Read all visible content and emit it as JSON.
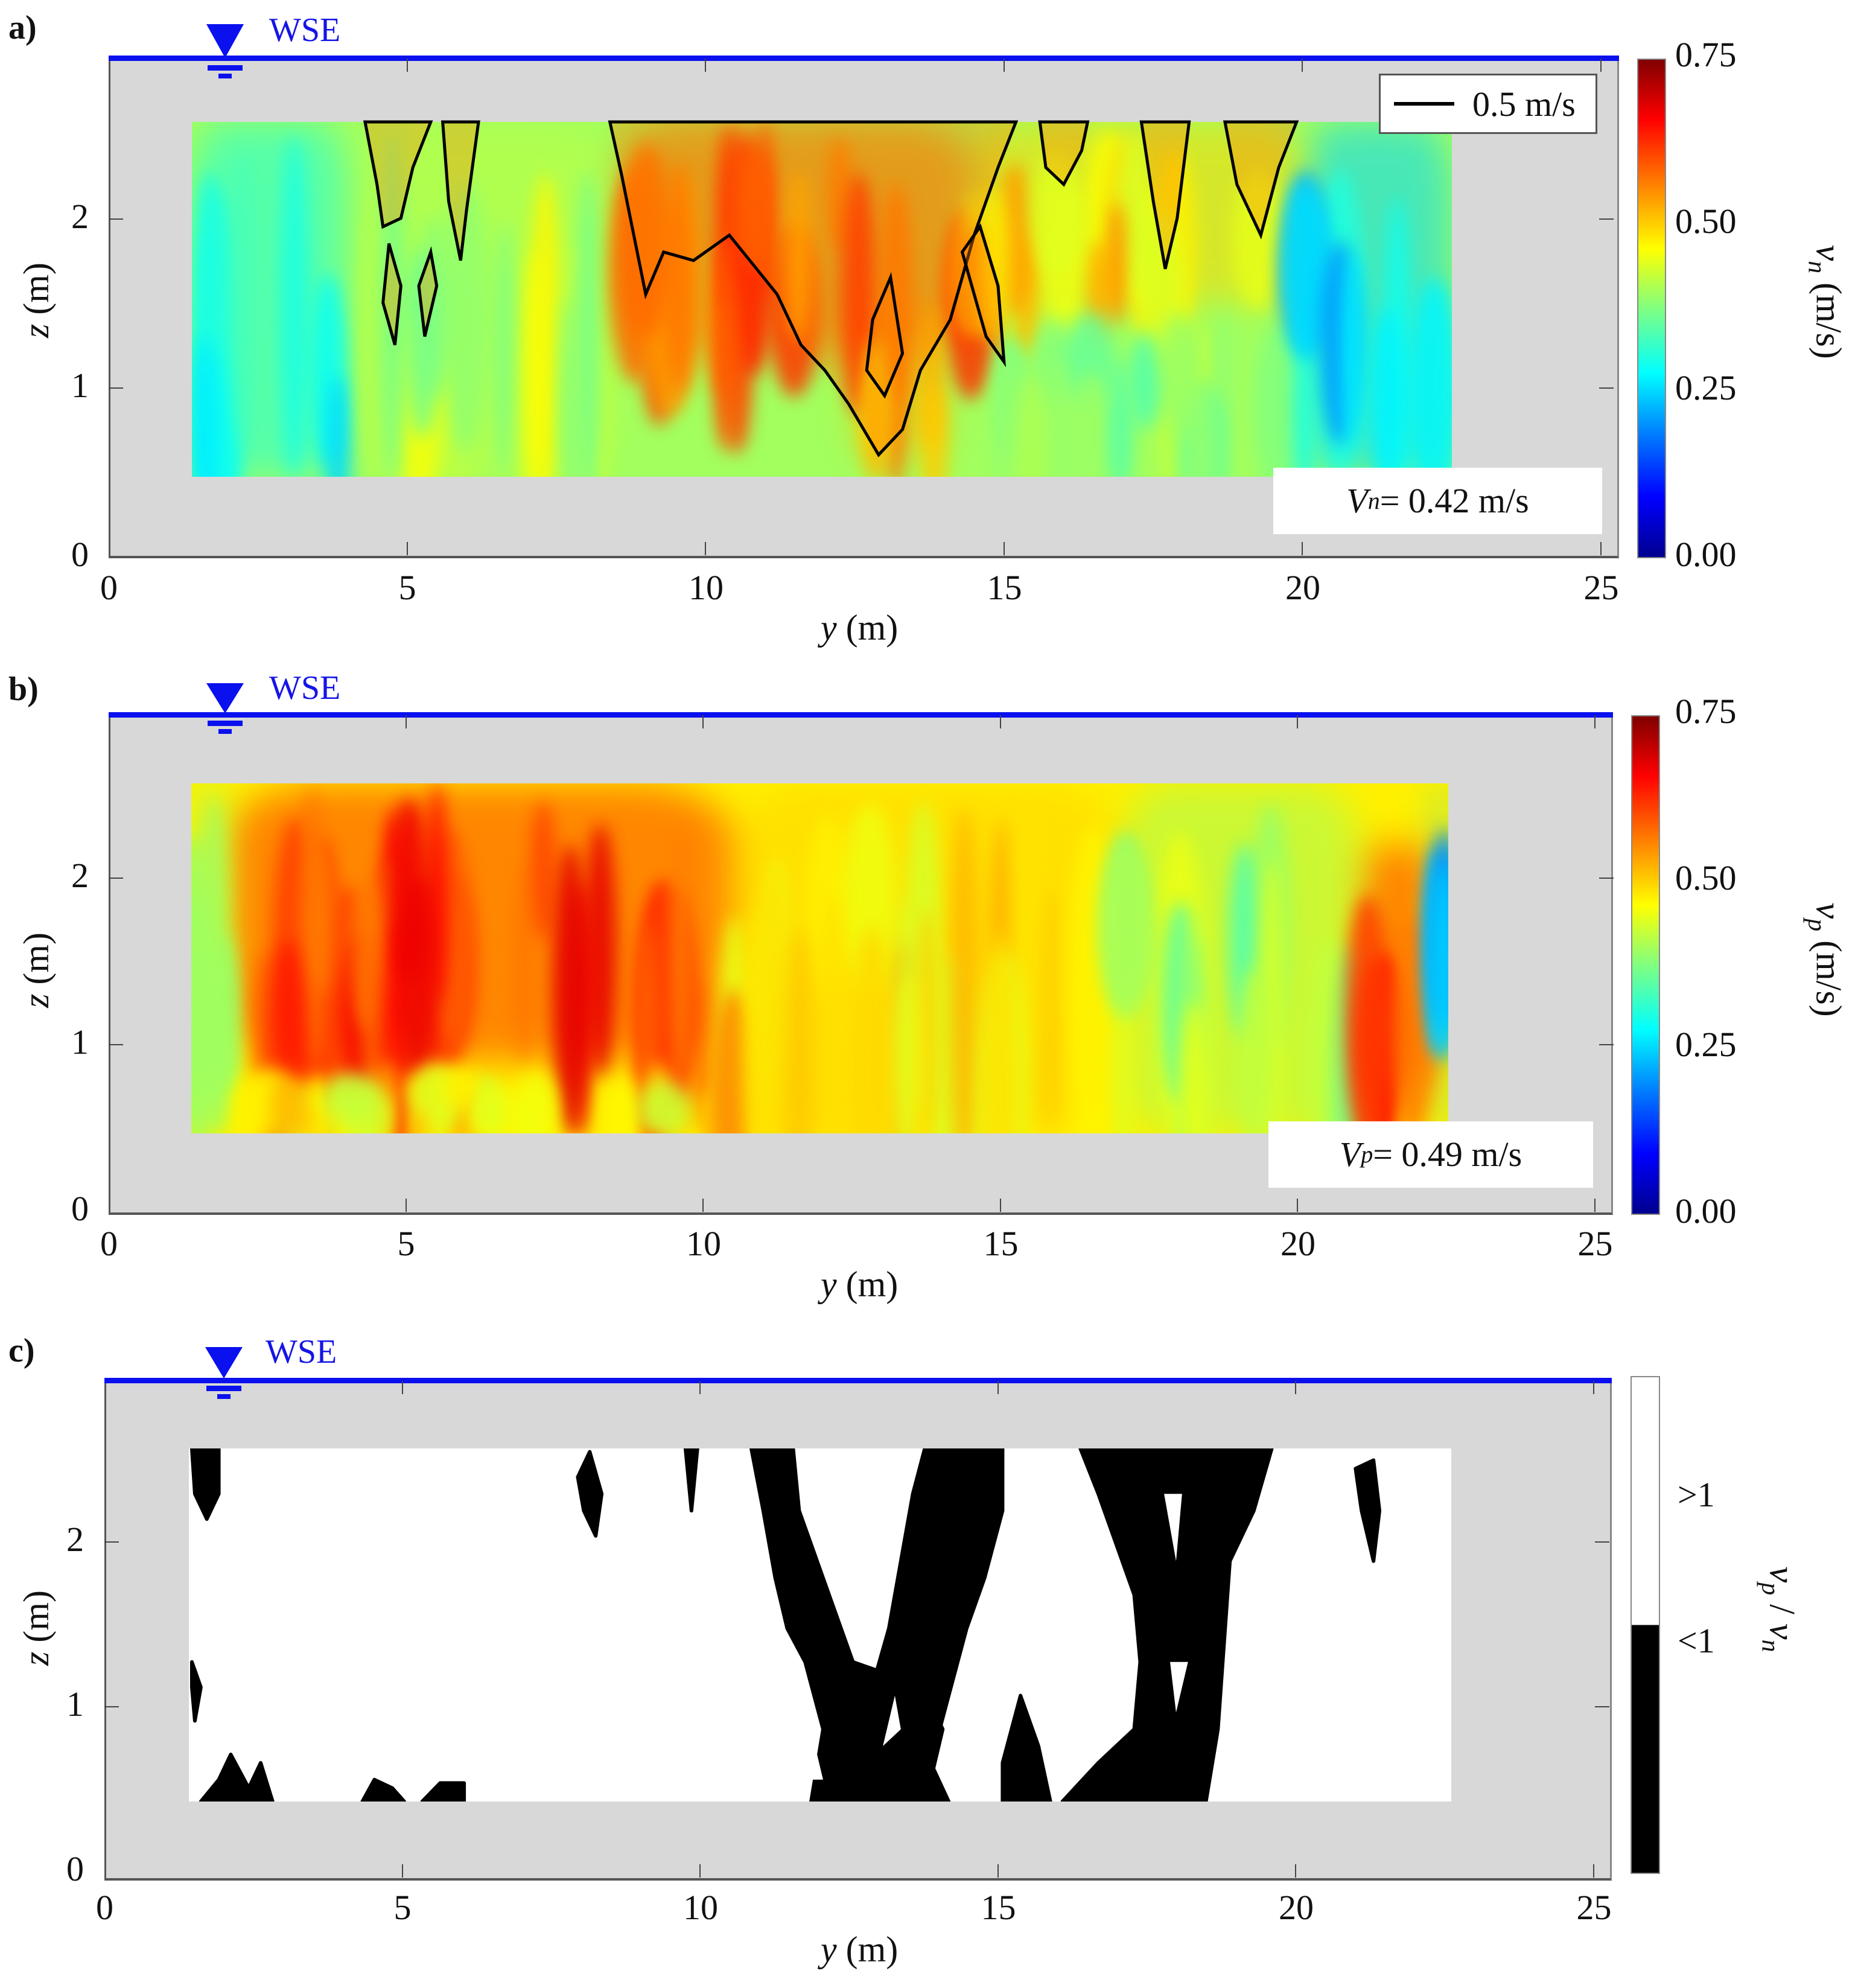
{
  "figure": {
    "panels": [
      {
        "id": "a",
        "label": "a)",
        "wse_label": "WSE",
        "xlabel_var": "y",
        "xlabel_unit": " (m)",
        "ylabel_var": "z",
        "ylabel_unit": " (m)",
        "x_ticks": [
          "0",
          "5",
          "10",
          "15",
          "20",
          "25"
        ],
        "y_ticks": [
          "0",
          "1",
          "2"
        ],
        "colorbar": {
          "ticks": [
            "0.75",
            "0.50",
            "0.25",
            "0.00"
          ],
          "label_var": "v",
          "label_sub": "n",
          "label_unit": " (m/s)"
        },
        "legend": {
          "line_label": "0.5 m/s"
        },
        "annotation": {
          "var": "V",
          "sub": "n",
          "text": " = 0.42 m/s"
        }
      },
      {
        "id": "b",
        "label": "b)",
        "wse_label": "WSE",
        "xlabel_var": "y",
        "xlabel_unit": " (m)",
        "ylabel_var": "z",
        "ylabel_unit": " (m)",
        "x_ticks": [
          "0",
          "5",
          "10",
          "15",
          "20",
          "25"
        ],
        "y_ticks": [
          "0",
          "1",
          "2"
        ],
        "colorbar": {
          "ticks": [
            "0.75",
            "0.50",
            "0.25",
            "0.00"
          ],
          "label_var": "v",
          "label_sub": "p",
          "label_unit": " (m/s)"
        },
        "annotation": {
          "var": "V",
          "sub": "p",
          "text": " = 0.49 m/s"
        }
      },
      {
        "id": "c",
        "label": "c)",
        "wse_label": "WSE",
        "xlabel_var": "y",
        "xlabel_unit": " (m)",
        "ylabel_var": "z",
        "ylabel_unit": " (m)",
        "x_ticks": [
          "0",
          "5",
          "10",
          "15",
          "20",
          "25"
        ],
        "y_ticks": [
          "0",
          "1",
          "2"
        ],
        "colorbar": {
          "ticks": [
            ">1",
            "<1"
          ],
          "label": "v_p / v_n",
          "label_var1": "v",
          "label_sub1": "p",
          "label_sep": " / ",
          "label_var2": "v",
          "label_sub2": "n"
        }
      }
    ]
  },
  "colors": {
    "wse": "#0a10ee",
    "background_axes": "#d8d8d8",
    "contour": "#000000",
    "jet": [
      "#00008f",
      "#0000ff",
      "#0080ff",
      "#00ffff",
      "#80ff80",
      "#ffff00",
      "#ff8000",
      "#ff0000",
      "#800000"
    ]
  },
  "chart_data": [
    {
      "type": "heatmap",
      "title": "a) Normal velocity component",
      "xlabel": "y (m)",
      "ylabel": "z (m)",
      "xlim": [
        0,
        25.5
      ],
      "ylim": [
        0,
        3.0
      ],
      "x_ticks": [
        0,
        5,
        10,
        15,
        20,
        25
      ],
      "y_ticks": [
        0,
        1,
        2
      ],
      "colorbar": {
        "label": "v_n (m/s)",
        "range": [
          0.0,
          0.75
        ],
        "ticks": [
          0.0,
          0.25,
          0.5,
          0.75
        ],
        "colormap": "jet"
      },
      "water_surface_elevation_z": 2.97,
      "measured_region": {
        "y": [
          1.4,
          22.5
        ],
        "z": [
          0.47,
          2.57
        ]
      },
      "contour_level": 0.5,
      "legend": [
        "0.5 m/s contour"
      ],
      "mean_value_annotation": "V_n = 0.42 m/s",
      "zones": [
        {
          "y": [
            1.4,
            4.0
          ],
          "z": [
            0.47,
            2.57
          ],
          "value": 0.3,
          "note": "cyan/green near left bank, blue streaks at bottom (~0.1)"
        },
        {
          "y": [
            4.0,
            8.5
          ],
          "z": [
            0.47,
            2.57
          ],
          "value": 0.42,
          "note": "yellow-green with orange patches near top (4.5-6 m)"
        },
        {
          "y": [
            8.5,
            14.5
          ],
          "z": [
            1.2,
            2.57
          ],
          "value": 0.58,
          "note": "orange-red core, max ~0.65 near y=12, z=2.2"
        },
        {
          "y": [
            12.5,
            14
          ],
          "z": [
            0.6,
            1.5
          ],
          "value": 0.52,
          "note": "orange tongue extending down"
        },
        {
          "y": [
            14.5,
            20
          ],
          "z": [
            1.5,
            2.57
          ],
          "value": 0.5,
          "note": "scattered orange patches inside 0.5 contours"
        },
        {
          "y": [
            14.5,
            20
          ],
          "z": [
            0.47,
            1.5
          ],
          "value": 0.4,
          "note": "yellow-green"
        },
        {
          "y": [
            20,
            22.5
          ],
          "z": [
            0.47,
            2.57
          ],
          "value": 0.25,
          "note": "cyan to blue, min ~0.08 near y=21.8, z=1.8"
        }
      ]
    },
    {
      "type": "heatmap",
      "title": "b) Primary velocity component",
      "xlabel": "y (m)",
      "ylabel": "z (m)",
      "xlim": [
        0,
        25.5
      ],
      "ylim": [
        0,
        3.0
      ],
      "x_ticks": [
        0,
        5,
        10,
        15,
        20,
        25
      ],
      "y_ticks": [
        0,
        1,
        2
      ],
      "colorbar": {
        "label": "v_p (m/s)",
        "range": [
          0.0,
          0.75
        ],
        "ticks": [
          0.0,
          0.25,
          0.5,
          0.75
        ],
        "colormap": "jet"
      },
      "water_surface_elevation_z": 2.97,
      "measured_region": {
        "y": [
          1.4,
          22.5
        ],
        "z": [
          0.47,
          2.57
        ]
      },
      "mean_value_annotation": "V_p = 0.49 m/s",
      "zones": [
        {
          "y": [
            1.4,
            2.0
          ],
          "z": [
            0.47,
            2.57
          ],
          "value": 0.4,
          "note": "yellow/green left edge, blue at bottom"
        },
        {
          "y": [
            2.0,
            10.5
          ],
          "z": [
            0.9,
            2.57
          ],
          "value": 0.62,
          "note": "red/orange high-velocity core, max ~0.7"
        },
        {
          "y": [
            2.0,
            10.5
          ],
          "z": [
            0.47,
            0.9
          ],
          "value": 0.48,
          "note": "orange-yellow near bed"
        },
        {
          "y": [
            10.5,
            17
          ],
          "z": [
            0.47,
            2.57
          ],
          "value": 0.5,
          "note": "orange-yellow, decreasing rightwards"
        },
        {
          "y": [
            17,
            21
          ],
          "z": [
            0.47,
            2.57
          ],
          "value": 0.4,
          "note": "yellow-green"
        },
        {
          "y": [
            21,
            22.3
          ],
          "z": [
            0.8,
            2.2
          ],
          "value": 0.62,
          "note": "red streak near right bank"
        },
        {
          "y": [
            22.3,
            22.5
          ],
          "z": [
            0.47,
            2.57
          ],
          "value": 0.25,
          "note": "cyan/blue at right edge"
        }
      ]
    },
    {
      "type": "heatmap",
      "title": "c) Ratio v_p / v_n",
      "xlabel": "y (m)",
      "ylabel": "z (m)",
      "xlim": [
        0,
        25.5
      ],
      "ylim": [
        0,
        3.0
      ],
      "x_ticks": [
        0,
        5,
        10,
        15,
        20,
        25
      ],
      "y_ticks": [
        0,
        1,
        2
      ],
      "colorbar": {
        "label": "v_p / v_n",
        "categories": [
          ">1",
          "<1"
        ],
        "colors": [
          "#ffffff",
          "#000000"
        ]
      },
      "water_surface_elevation_z": 2.97,
      "measured_region": {
        "y": [
          1.4,
          22.5
        ],
        "z": [
          0.47,
          2.57
        ]
      },
      "zones": [
        {
          "y": [
            1.4,
            10.8
          ],
          "z": [
            0.47,
            2.57
          ],
          "category": ">1",
          "note": "mostly white with small black specks"
        },
        {
          "y": [
            10.8,
            15.2
          ],
          "z": [
            0.47,
            2.57
          ],
          "category": "<1",
          "note": "large black region with white holes"
        },
        {
          "y": [
            15.2,
            17.0
          ],
          "z": [
            0.47,
            2.57
          ],
          "category": ">1",
          "note": "white gap"
        },
        {
          "y": [
            16.5,
            19.6
          ],
          "z": [
            0.47,
            2.57
          ],
          "category": "<1",
          "note": "black band"
        },
        {
          "y": [
            19.6,
            22.5
          ],
          "z": [
            0.47,
            2.57
          ],
          "category": ">1",
          "note": "white with black blobs near top"
        }
      ]
    }
  ]
}
